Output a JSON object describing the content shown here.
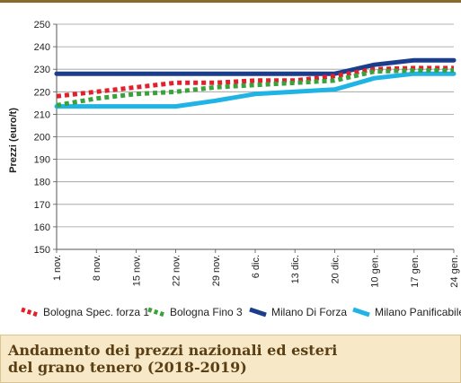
{
  "chart_data": {
    "type": "line",
    "ylabel": "Prezzi (euro/t)",
    "xlabel": "",
    "ylim": [
      150,
      250
    ],
    "yticks": [
      150,
      160,
      170,
      180,
      190,
      200,
      210,
      220,
      230,
      240,
      250
    ],
    "categories": [
      "1 nov.",
      "8 nov.",
      "15 nov.",
      "22 nov.",
      "29 nov.",
      "6 dic.",
      "13 dic.",
      "20 dic.",
      "10 gen.",
      "17 gen.",
      "24 gen."
    ],
    "grid": "horizontal",
    "legend": "bottom",
    "series": [
      {
        "name": "Bologna Spec. forza 1",
        "color": "#e0202a",
        "style": "dotted",
        "values": [
          218,
          220,
          222,
          224,
          224,
          225,
          225,
          227,
          230,
          230.5,
          230.5
        ]
      },
      {
        "name": "Bologna Fino 3",
        "color": "#3aa23a",
        "style": "dotted",
        "values": [
          214,
          217,
          219,
          220,
          222,
          223,
          224,
          225,
          229,
          229.5,
          229.5
        ]
      },
      {
        "name": "Milano Di Forza",
        "color": "#1a3e8c",
        "style": "solid",
        "values": [
          228,
          228,
          228,
          228,
          228,
          228,
          228,
          228,
          232,
          234,
          234
        ]
      },
      {
        "name": "Milano Panificabile",
        "color": "#20b4e6",
        "style": "solid",
        "values": [
          213.5,
          213.5,
          213.5,
          213.5,
          216,
          219,
          220,
          221,
          226,
          228,
          228
        ]
      }
    ]
  },
  "caption": {
    "line1": "Andamento dei prezzi nazionali ed esteri",
    "line2": "del grano tenero (2018-2019)"
  }
}
